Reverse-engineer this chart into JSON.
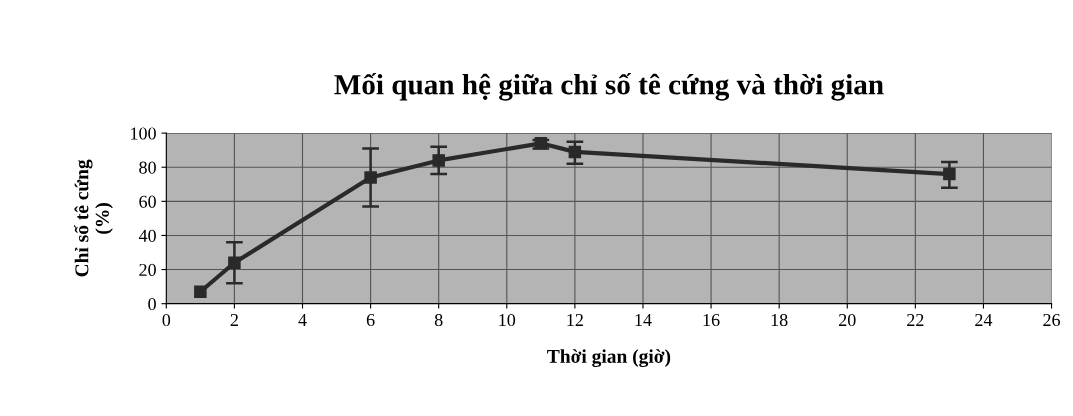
{
  "chart_data": {
    "type": "line",
    "title": "Mối quan hệ giữa chỉ số tê cứng và thời gian",
    "xlabel": "Thời gian (giờ)",
    "ylabel": "Chỉ số tê cứng\n(%)",
    "x": [
      1,
      2,
      6,
      8,
      11,
      12,
      23
    ],
    "series": [
      {
        "color": "#2a2a2a",
        "values": [
          7,
          24,
          74,
          84,
          94,
          89,
          76
        ],
        "errors": [
          null,
          [
            12,
            36
          ],
          [
            57,
            91
          ],
          [
            76,
            92
          ],
          [
            91,
            96
          ],
          [
            82,
            95
          ],
          [
            68,
            83
          ]
        ]
      }
    ],
    "xlim": [
      0,
      26
    ],
    "xticks": [
      0,
      2,
      4,
      6,
      8,
      10,
      12,
      14,
      16,
      18,
      20,
      22,
      24,
      26
    ],
    "ylim": [
      0,
      100
    ],
    "yticks": [
      0,
      20,
      40,
      60,
      80,
      100
    ],
    "grid": true,
    "marker": "square",
    "line_style": "solid",
    "legend": false
  }
}
